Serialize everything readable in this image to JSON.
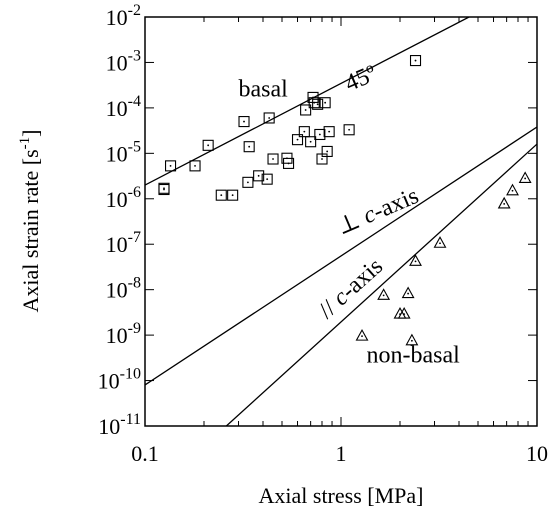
{
  "chart_data": {
    "type": "scatter",
    "xscale": "log",
    "yscale": "log",
    "xlim": [
      0.1,
      10
    ],
    "ylim": [
      1e-11,
      0.01
    ],
    "xlabel": "Axial stress [MPa]",
    "ylabel": "Axial strain rate [s",
    "ylabel_sup": "-1",
    "ylabel_end": "]",
    "x_ticks": [
      {
        "value": 0.1,
        "label": "0.1"
      },
      {
        "value": 1,
        "label": "1"
      },
      {
        "value": 10,
        "label": "10"
      }
    ],
    "y_ticks": [
      {
        "value": 1e-11,
        "base": "10",
        "exp": "-11"
      },
      {
        "value": 1e-10,
        "base": "10",
        "exp": "-10"
      },
      {
        "value": 1e-09,
        "base": "10",
        "exp": "-9"
      },
      {
        "value": 1e-08,
        "base": "10",
        "exp": "-8"
      },
      {
        "value": 1e-07,
        "base": "10",
        "exp": "-7"
      },
      {
        "value": 1e-06,
        "base": "10",
        "exp": "-6"
      },
      {
        "value": 1e-05,
        "base": "10",
        "exp": "-5"
      },
      {
        "value": 0.0001,
        "base": "10",
        "exp": "-4"
      },
      {
        "value": 0.001,
        "base": "10",
        "exp": "-3"
      },
      {
        "value": 0.01,
        "base": "10",
        "exp": "-2"
      }
    ],
    "series": [
      {
        "name": "basal",
        "marker": "square",
        "x": [
          0.125,
          0.125,
          0.135,
          0.18,
          0.21,
          0.245,
          0.28,
          0.32,
          0.335,
          0.34,
          0.38,
          0.42,
          0.43,
          0.45,
          0.53,
          0.54,
          0.6,
          0.65,
          0.66,
          0.7,
          0.72,
          0.73,
          0.76,
          0.78,
          0.8,
          0.83,
          0.85,
          0.87,
          1.1,
          2.4
        ],
        "y": [
          1.7e-06,
          1.6e-06,
          5.3e-06,
          5.3e-06,
          1.5e-05,
          1.2e-06,
          1.2e-06,
          5e-05,
          2.3e-06,
          1.4e-05,
          3.2e-06,
          2.7e-06,
          6e-05,
          7.5e-06,
          7.8e-06,
          6e-06,
          2e-05,
          3e-05,
          9e-05,
          1.8e-05,
          0.00017,
          0.00013,
          0.00012,
          2.6e-05,
          7.5e-06,
          0.00013,
          1.1e-05,
          3e-05,
          3.3e-05,
          0.0011
        ]
      },
      {
        "name": "non-basal",
        "marker": "triangle",
        "x": [
          1.28,
          1.65,
          2.0,
          2.1,
          2.2,
          2.3,
          2.4,
          3.2,
          6.8,
          7.5,
          8.7
        ],
        "y": [
          9.5e-10,
          7.5e-09,
          2.9e-09,
          2.9e-09,
          8.2e-09,
          7.5e-10,
          4.2e-08,
          1.05e-07,
          7.7e-07,
          1.5e-06,
          2.8e-06
        ]
      }
    ],
    "lines": [
      {
        "name": "45º",
        "x": [
          0.1,
          4.5
        ],
        "y": [
          2e-06,
          0.01
        ]
      },
      {
        "name": "⊥ c-axis",
        "x": [
          0.1,
          10
        ],
        "y": [
          8e-11,
          3.8e-05
        ]
      },
      {
        "name": "// c-axis",
        "x": [
          0.26,
          10
        ],
        "y": [
          1e-11,
          1.6e-05
        ]
      }
    ],
    "annotations": [
      {
        "text": "basal",
        "x": 0.3,
        "y": 0.00018
      },
      {
        "text": "45º",
        "x": 1.1,
        "y": 0.00023,
        "rotate": -23
      },
      {
        "text_pre": "⊥ ",
        "text_italic": "c",
        "text_post": "-axis",
        "x": 1.0,
        "y": 1.6e-07,
        "rotate": -23
      },
      {
        "text_pre": "// ",
        "text_italic": "c",
        "text_post": "-axis",
        "x": 0.85,
        "y": 2.2e-09,
        "rotate": -42
      },
      {
        "text": "non-basal",
        "x": 1.35,
        "y": 2.5e-10
      }
    ],
    "grid": false,
    "legend": "none"
  }
}
